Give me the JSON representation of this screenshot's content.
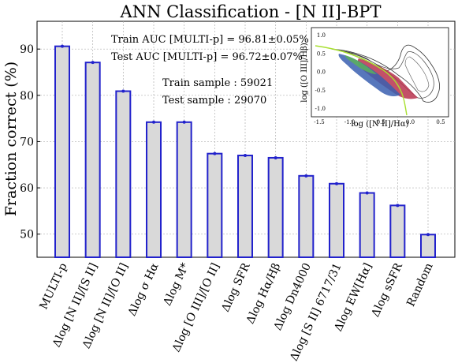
{
  "chart_data": {
    "type": "bar",
    "title": "ANN Classification - [N II]-BPT",
    "xlabel": "",
    "ylabel": "Fraction correct (%)",
    "ylim": [
      45,
      96
    ],
    "yticks": [
      50,
      60,
      70,
      80,
      90
    ],
    "grid": true,
    "categories": [
      "MULTI-p",
      "Δlog [N II]/[S II]",
      "Δlog [N II]/[O II]",
      "Δlog σ Hα",
      "Δlog M*",
      "Δlog [O III]/[O II]",
      "Δlog SFR",
      "Δlog Hα/Hβ",
      "Δlog Dn4000",
      "Δlog [S II] 6717/31",
      "Δlog EW[Hα]",
      "Δlog sSFR",
      "Random"
    ],
    "values": [
      90.6,
      87.1,
      80.9,
      74.2,
      74.2,
      67.4,
      67.0,
      66.5,
      62.6,
      60.9,
      58.9,
      56.2,
      49.9
    ],
    "annotations": {
      "train_auc": "Train AUC [MULTI-p] = 96.81±0.05%",
      "test_auc": "Test AUC [MULTI-p] = 96.72±0.07%",
      "train_sample": "Train sample : 59021",
      "test_sample": "Test sample : 29070"
    },
    "inset": {
      "xlabel": "log ([N II]/Hα)",
      "ylabel": "log ([O III]/Hβ)",
      "xlim": [
        -1.5,
        0.5
      ],
      "ylim": [
        -1.2,
        1.2
      ],
      "xticks": [
        "-1.5",
        "-1.0",
        "-0.5",
        "0.0",
        "0.5"
      ],
      "yticks": [
        "1.0",
        "0.5",
        "0.0",
        "-0.5",
        "-1.0"
      ]
    }
  },
  "colors": {
    "bar_fill": "#d9d9d9",
    "bar_edge": "#2222cc",
    "grid": "#b0b0b0"
  }
}
